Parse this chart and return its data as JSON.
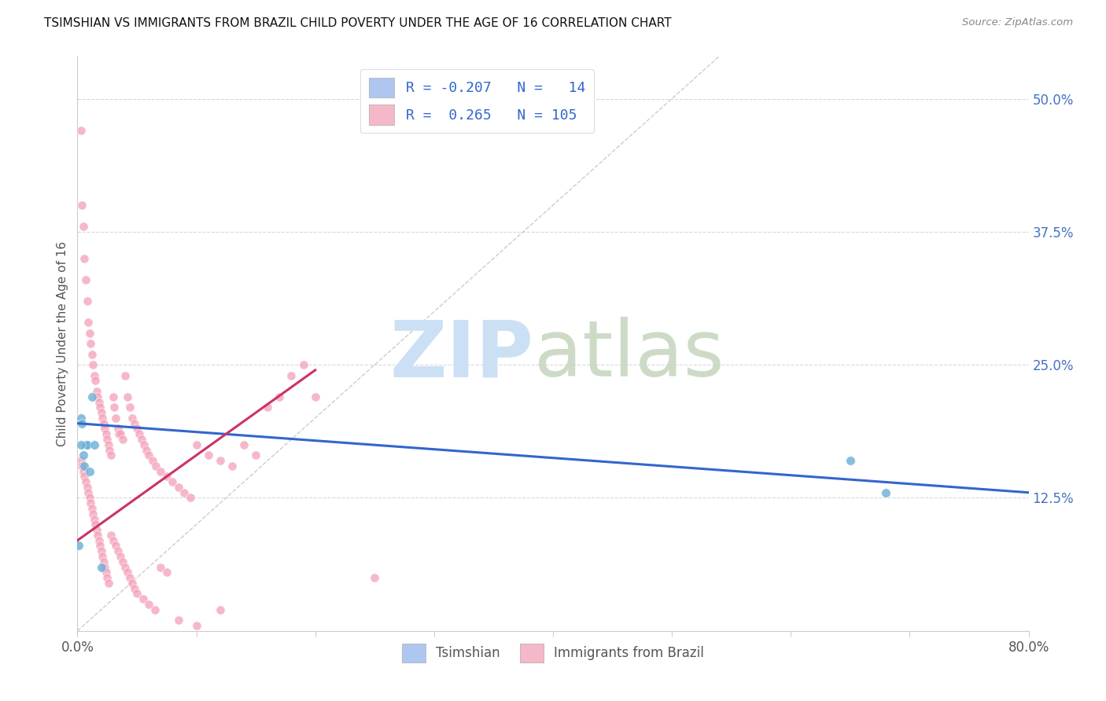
{
  "title": "TSIMSHIAN VS IMMIGRANTS FROM BRAZIL CHILD POVERTY UNDER THE AGE OF 16 CORRELATION CHART",
  "source": "Source: ZipAtlas.com",
  "ylabel": "Child Poverty Under the Age of 16",
  "xlim": [
    0.0,
    0.8
  ],
  "ylim": [
    0.0,
    0.54
  ],
  "xticks": [
    0.0,
    0.1,
    0.2,
    0.3,
    0.4,
    0.5,
    0.6,
    0.7,
    0.8
  ],
  "xticklabels": [
    "0.0%",
    "",
    "",
    "",
    "",
    "",
    "",
    "",
    "80.0%"
  ],
  "ytick_right_labels": [
    "50.0%",
    "37.5%",
    "25.0%",
    "12.5%"
  ],
  "ytick_right_values": [
    0.5,
    0.375,
    0.25,
    0.125
  ],
  "legend_label1": "Tsimshian",
  "legend_label2": "Immigrants from Brazil",
  "tsimshian_marker_color": "#6baed6",
  "brazil_marker_color": "#f4a0b8",
  "tsimshian_line_color": "#3366cc",
  "brazil_line_color": "#cc3366",
  "diagonal_color": "#cccccc",
  "tsimshian_legend_color": "#aec6f0",
  "brazil_legend_color": "#f5b8c8",
  "tsimshian_x": [
    0.001,
    0.003,
    0.004,
    0.005,
    0.006,
    0.007,
    0.008,
    0.01,
    0.012,
    0.014,
    0.02,
    0.65,
    0.68,
    0.003
  ],
  "tsimshian_y": [
    0.08,
    0.2,
    0.195,
    0.165,
    0.155,
    0.175,
    0.175,
    0.15,
    0.22,
    0.175,
    0.06,
    0.16,
    0.13,
    0.175
  ],
  "brazil_x": [
    0.003,
    0.004,
    0.005,
    0.006,
    0.007,
    0.008,
    0.009,
    0.01,
    0.011,
    0.012,
    0.013,
    0.014,
    0.015,
    0.016,
    0.017,
    0.018,
    0.019,
    0.02,
    0.021,
    0.022,
    0.023,
    0.024,
    0.025,
    0.026,
    0.027,
    0.028,
    0.03,
    0.031,
    0.032,
    0.034,
    0.035,
    0.036,
    0.038,
    0.04,
    0.042,
    0.044,
    0.046,
    0.048,
    0.05,
    0.052,
    0.054,
    0.056,
    0.058,
    0.06,
    0.063,
    0.066,
    0.07,
    0.075,
    0.08,
    0.085,
    0.09,
    0.095,
    0.1,
    0.11,
    0.12,
    0.13,
    0.14,
    0.15,
    0.16,
    0.17,
    0.18,
    0.19,
    0.2,
    0.003,
    0.004,
    0.005,
    0.006,
    0.007,
    0.008,
    0.009,
    0.01,
    0.011,
    0.012,
    0.013,
    0.014,
    0.015,
    0.016,
    0.017,
    0.018,
    0.019,
    0.02,
    0.021,
    0.022,
    0.023,
    0.024,
    0.025,
    0.026,
    0.028,
    0.03,
    0.032,
    0.034,
    0.036,
    0.038,
    0.04,
    0.042,
    0.044,
    0.046,
    0.048,
    0.05,
    0.055,
    0.06,
    0.065,
    0.07,
    0.075,
    0.085,
    0.1,
    0.12,
    0.25
  ],
  "brazil_y": [
    0.47,
    0.4,
    0.38,
    0.35,
    0.33,
    0.31,
    0.29,
    0.28,
    0.27,
    0.26,
    0.25,
    0.24,
    0.235,
    0.225,
    0.22,
    0.215,
    0.21,
    0.205,
    0.2,
    0.195,
    0.19,
    0.185,
    0.18,
    0.175,
    0.17,
    0.165,
    0.22,
    0.21,
    0.2,
    0.19,
    0.185,
    0.185,
    0.18,
    0.24,
    0.22,
    0.21,
    0.2,
    0.195,
    0.19,
    0.185,
    0.18,
    0.175,
    0.17,
    0.165,
    0.16,
    0.155,
    0.15,
    0.145,
    0.14,
    0.135,
    0.13,
    0.125,
    0.175,
    0.165,
    0.16,
    0.155,
    0.175,
    0.165,
    0.21,
    0.22,
    0.24,
    0.25,
    0.22,
    0.16,
    0.155,
    0.15,
    0.145,
    0.14,
    0.135,
    0.13,
    0.125,
    0.12,
    0.115,
    0.11,
    0.105,
    0.1,
    0.095,
    0.09,
    0.085,
    0.08,
    0.075,
    0.07,
    0.065,
    0.06,
    0.055,
    0.05,
    0.045,
    0.09,
    0.085,
    0.08,
    0.075,
    0.07,
    0.065,
    0.06,
    0.055,
    0.05,
    0.045,
    0.04,
    0.035,
    0.03,
    0.025,
    0.02,
    0.06,
    0.055,
    0.01,
    0.005,
    0.02,
    0.05
  ],
  "tsimshian_line_x0": 0.0,
  "tsimshian_line_x1": 0.8,
  "tsimshian_line_y0": 0.195,
  "tsimshian_line_y1": 0.13,
  "brazil_line_x0": 0.0,
  "brazil_line_x1": 0.2,
  "brazil_line_y0": 0.085,
  "brazil_line_y1": 0.245
}
